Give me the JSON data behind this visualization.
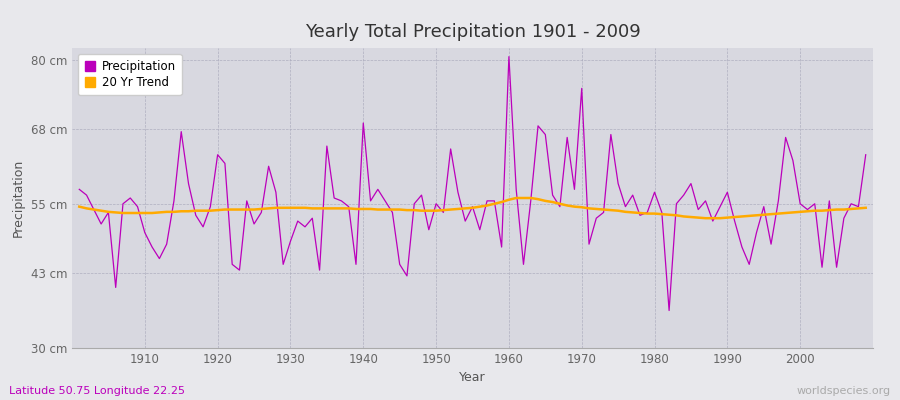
{
  "title": "Yearly Total Precipitation 1901 - 2009",
  "xlabel": "Year",
  "ylabel": "Precipitation",
  "subtitle": "Latitude 50.75 Longitude 22.25",
  "watermark": "worldspecies.org",
  "background_color": "#e8e8ec",
  "plot_bg_color": "#d8d8e0",
  "precip_color": "#bb00bb",
  "trend_color": "#ffaa00",
  "years": [
    1901,
    1902,
    1903,
    1904,
    1905,
    1906,
    1907,
    1908,
    1909,
    1910,
    1911,
    1912,
    1913,
    1914,
    1915,
    1916,
    1917,
    1918,
    1919,
    1920,
    1921,
    1922,
    1923,
    1924,
    1925,
    1926,
    1927,
    1928,
    1929,
    1930,
    1931,
    1932,
    1933,
    1934,
    1935,
    1936,
    1937,
    1938,
    1939,
    1940,
    1941,
    1942,
    1943,
    1944,
    1945,
    1946,
    1947,
    1948,
    1949,
    1950,
    1951,
    1952,
    1953,
    1954,
    1955,
    1956,
    1957,
    1958,
    1959,
    1960,
    1961,
    1962,
    1963,
    1964,
    1965,
    1966,
    1967,
    1968,
    1969,
    1970,
    1971,
    1972,
    1973,
    1974,
    1975,
    1976,
    1977,
    1978,
    1979,
    1980,
    1981,
    1982,
    1983,
    1984,
    1985,
    1986,
    1987,
    1988,
    1989,
    1990,
    1991,
    1992,
    1993,
    1994,
    1995,
    1996,
    1997,
    1998,
    1999,
    2000,
    2001,
    2002,
    2003,
    2004,
    2005,
    2006,
    2007,
    2008,
    2009
  ],
  "precip": [
    57.5,
    56.5,
    54.0,
    51.5,
    53.5,
    40.5,
    55.0,
    56.0,
    54.5,
    50.0,
    47.5,
    45.5,
    48.0,
    55.5,
    67.5,
    58.5,
    53.0,
    51.0,
    54.5,
    63.5,
    62.0,
    44.5,
    43.5,
    55.5,
    51.5,
    53.5,
    61.5,
    57.0,
    44.5,
    48.5,
    52.0,
    51.0,
    52.5,
    43.5,
    65.0,
    56.0,
    55.5,
    54.5,
    44.5,
    69.0,
    55.5,
    57.5,
    55.5,
    53.5,
    44.5,
    42.5,
    55.0,
    56.5,
    50.5,
    55.0,
    53.5,
    64.5,
    57.0,
    52.0,
    54.5,
    50.5,
    55.5,
    55.5,
    47.5,
    80.5,
    57.5,
    44.5,
    55.5,
    68.5,
    67.0,
    56.5,
    54.5,
    66.5,
    57.5,
    75.0,
    48.0,
    52.5,
    53.5,
    67.0,
    58.5,
    54.5,
    56.5,
    53.0,
    53.5,
    57.0,
    53.5,
    36.5,
    55.0,
    56.5,
    58.5,
    54.0,
    55.5,
    52.0,
    54.5,
    57.0,
    52.0,
    47.5,
    44.5,
    50.0,
    54.5,
    48.0,
    55.5,
    66.5,
    62.5,
    55.0,
    54.0,
    55.0,
    44.0,
    55.5,
    44.0,
    52.5,
    55.0,
    54.5,
    63.5
  ],
  "trend": [
    54.5,
    54.2,
    54.0,
    53.8,
    53.6,
    53.5,
    53.4,
    53.4,
    53.4,
    53.4,
    53.4,
    53.5,
    53.6,
    53.6,
    53.7,
    53.7,
    53.8,
    53.8,
    53.8,
    53.9,
    54.0,
    54.0,
    54.0,
    54.0,
    54.0,
    54.1,
    54.2,
    54.3,
    54.3,
    54.3,
    54.3,
    54.3,
    54.2,
    54.2,
    54.2,
    54.2,
    54.2,
    54.2,
    54.1,
    54.1,
    54.1,
    54.0,
    54.0,
    54.0,
    54.0,
    53.9,
    53.9,
    53.8,
    53.8,
    53.8,
    53.9,
    54.0,
    54.1,
    54.2,
    54.3,
    54.5,
    54.7,
    55.0,
    55.3,
    55.7,
    56.0,
    56.0,
    56.0,
    55.8,
    55.5,
    55.3,
    55.0,
    54.7,
    54.5,
    54.4,
    54.2,
    54.1,
    54.0,
    53.9,
    53.8,
    53.6,
    53.5,
    53.4,
    53.3,
    53.3,
    53.2,
    53.1,
    53.0,
    52.8,
    52.7,
    52.6,
    52.5,
    52.5,
    52.5,
    52.6,
    52.7,
    52.8,
    52.9,
    53.0,
    53.1,
    53.2,
    53.3,
    53.4,
    53.5,
    53.6,
    53.7,
    53.8,
    53.8,
    53.9,
    54.0,
    54.0,
    54.1,
    54.2,
    54.3
  ],
  "ylim": [
    30,
    82
  ],
  "yticks": [
    30,
    43,
    55,
    68,
    80
  ],
  "ytick_labels": [
    "30 cm",
    "43 cm",
    "55 cm",
    "68 cm",
    "80 cm"
  ],
  "xlim": [
    1900,
    2010
  ],
  "xticks": [
    1910,
    1920,
    1930,
    1940,
    1950,
    1960,
    1970,
    1980,
    1990,
    2000
  ]
}
